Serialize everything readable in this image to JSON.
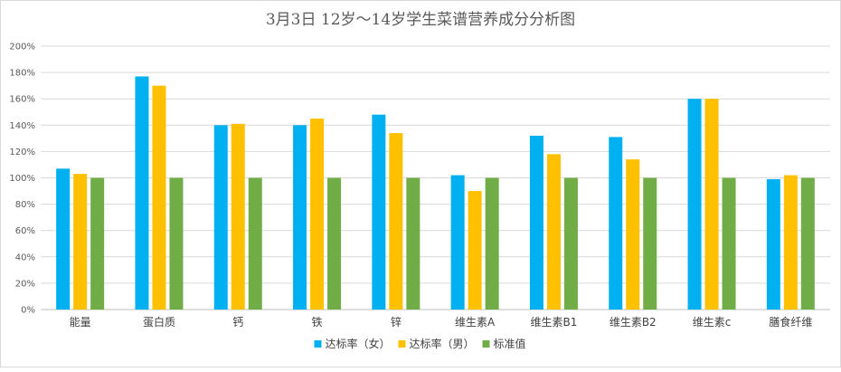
{
  "chart_data": {
    "type": "bar",
    "title": "3月3日 12岁～14岁学生菜谱营养成分分析图",
    "categories": [
      "能量",
      "蛋白质",
      "钙",
      "铁",
      "锌",
      "维生素A",
      "维生素B1",
      "维生素B2",
      "维生素c",
      "膳食纤维"
    ],
    "series": [
      {
        "name": "达标率（女）",
        "color": "#00B0F0",
        "values": [
          1.07,
          1.77,
          1.4,
          1.4,
          1.48,
          1.02,
          1.32,
          1.31,
          1.6,
          0.99
        ]
      },
      {
        "name": "达标率（男）",
        "color": "#FFC000",
        "values": [
          1.03,
          1.7,
          1.41,
          1.45,
          1.34,
          0.9,
          1.18,
          1.14,
          1.6,
          1.02
        ]
      },
      {
        "name": "标准值",
        "color": "#70AD47",
        "values": [
          1.0,
          1.0,
          1.0,
          1.0,
          1.0,
          1.0,
          1.0,
          1.0,
          1.0,
          1.0
        ]
      }
    ],
    "y_ticks": [
      "0%",
      "20%",
      "40%",
      "60%",
      "80%",
      "100%",
      "120%",
      "140%",
      "160%",
      "180%",
      "200%"
    ],
    "ylim": [
      0,
      2.0
    ],
    "grid": true,
    "legend_position": "bottom"
  }
}
